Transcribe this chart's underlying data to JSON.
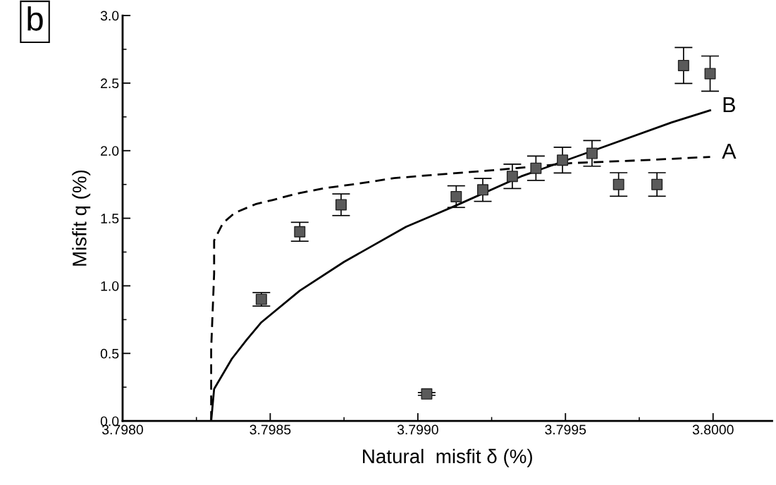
{
  "chart_data": {
    "type": "scatter",
    "xlabel": "Natural  misfit δ (%)",
    "ylabel": "Misfit q (%)",
    "xlim": [
      3.798,
      3.8002
    ],
    "ylim": [
      0,
      3.0
    ],
    "xticks": [
      {
        "value": 3.798,
        "label": "3.7980"
      },
      {
        "value": 3.7985,
        "label": "3.7985"
      },
      {
        "value": 3.799,
        "label": "3.7990"
      },
      {
        "value": 3.7995,
        "label": "3.7995"
      },
      {
        "value": 3.8,
        "label": "3.8000"
      }
    ],
    "yticks": [
      {
        "value": 0,
        "label": "0.0"
      },
      {
        "value": 0.5,
        "label": "0.5"
      },
      {
        "value": 1.0,
        "label": "1.0"
      },
      {
        "value": 1.5,
        "label": "1.5"
      },
      {
        "value": 2.0,
        "label": "2.0"
      },
      {
        "value": 2.5,
        "label": "2.5"
      },
      {
        "value": 3.0,
        "label": "3.0"
      }
    ],
    "grid": false,
    "series": [
      {
        "color": "#5a5a5a",
        "marker": "square",
        "x": [
          3.79847,
          3.7986,
          3.79874,
          3.79903,
          3.79913,
          3.79922,
          3.79932,
          3.7994,
          3.79949,
          3.79959,
          3.79968,
          3.79981,
          3.7999,
          3.79999
        ],
        "values": [
          0.9,
          1.4,
          1.6,
          0.2,
          1.66,
          1.71,
          1.81,
          1.87,
          1.93,
          1.98,
          1.75,
          1.75,
          2.63,
          2.57
        ],
        "errors": [
          0.05,
          0.07,
          0.08,
          0.01,
          0.08,
          0.085,
          0.09,
          0.09,
          0.095,
          0.095,
          0.087,
          0.087,
          0.133,
          0.13
        ]
      },
      {
        "type": "line",
        "name": "A",
        "color": "#000000",
        "line_style": "dashed",
        "marker": "none",
        "x": [
          3.7983,
          3.7983,
          3.79831,
          3.79831,
          3.79834,
          3.79838,
          3.79845,
          3.79851,
          3.79859,
          3.79869,
          3.79879,
          3.79892,
          3.79905,
          3.79926,
          3.79952,
          3.79977,
          3.79999
        ],
        "values": [
          0,
          0.535,
          1.09,
          1.335,
          1.465,
          1.54,
          1.604,
          1.636,
          1.682,
          1.725,
          1.753,
          1.797,
          1.82,
          1.856,
          1.908,
          1.93,
          1.954
        ]
      },
      {
        "type": "line",
        "name": "B",
        "color": "#000000",
        "line_style": "solid",
        "marker": "none",
        "x": [
          3.7983,
          3.79831,
          3.79837,
          3.79842,
          3.79847,
          3.7986,
          3.79875,
          3.79896,
          3.79905,
          3.79913,
          3.79935,
          3.7996,
          3.79986,
          3.79999
        ],
        "values": [
          0,
          0.237,
          0.46,
          0.6,
          0.73,
          0.964,
          1.177,
          1.437,
          1.52,
          1.595,
          1.81,
          2.005,
          2.209,
          2.298
        ]
      }
    ],
    "annotations": [
      "b"
    ]
  }
}
